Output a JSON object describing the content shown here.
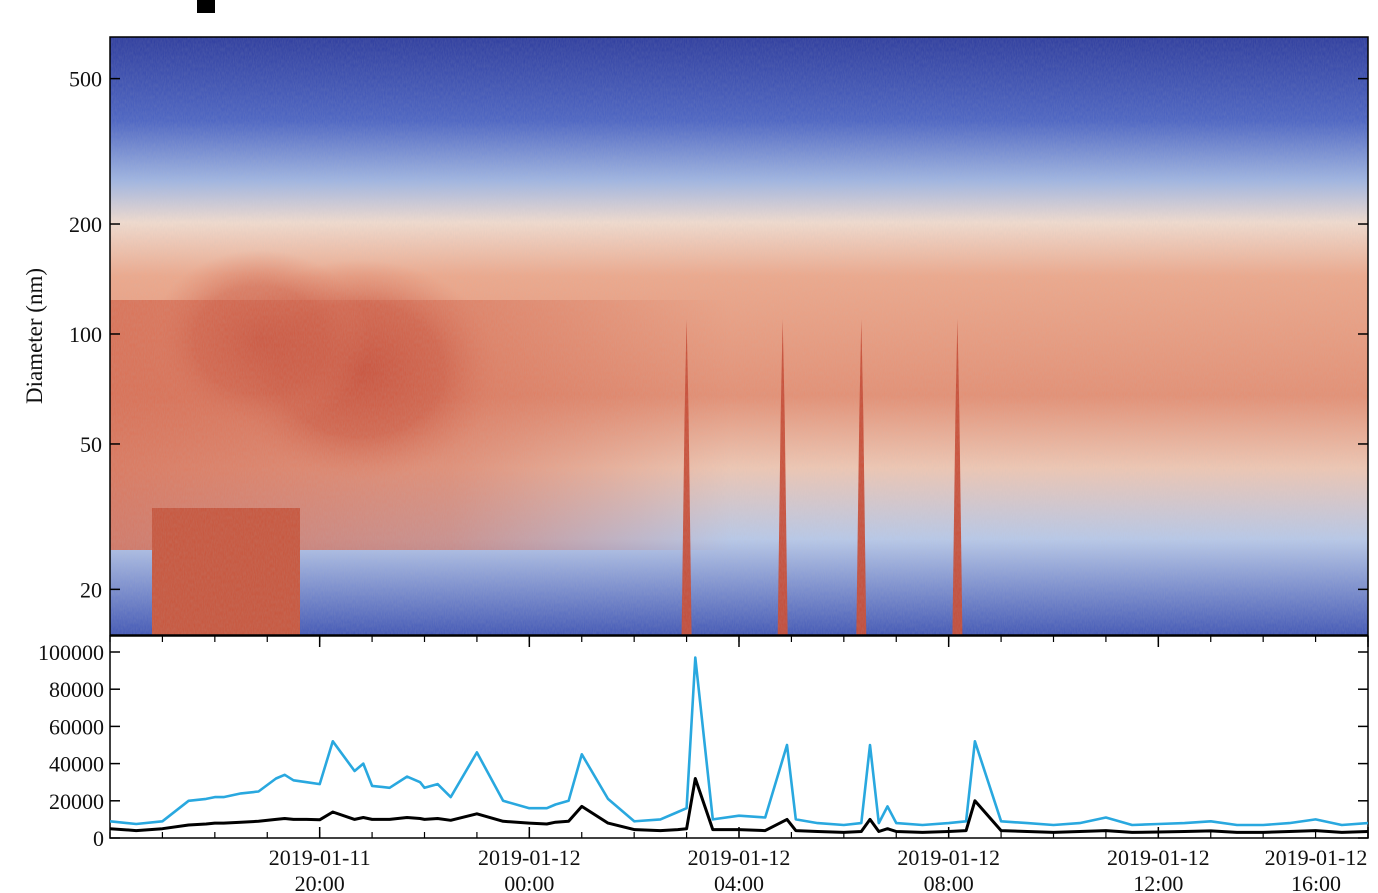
{
  "chart_data": [
    {
      "type": "heatmap",
      "title": "",
      "ylabel": "Diameter (nm)",
      "xlabel": "",
      "yscale": "log",
      "ylim": [
        15,
        650
      ],
      "yticks": [
        20,
        50,
        100,
        200,
        500
      ],
      "ytick_labels": [
        "20",
        "50",
        "100",
        "200",
        "500"
      ],
      "colormap": "coolwarm (blue low → red high)",
      "description_of_values": "Aerosol size distribution; high concentrations (red) at 20–200 nm before ~02:00 and in short burst events; low (blue) above ~250 nm and below ~50 nm after 02:00",
      "burst_events": [
        "2019-01-12 03:00",
        "2019-01-12 04:50",
        "2019-01-12 06:20",
        "2019-01-12 08:10"
      ]
    },
    {
      "type": "line",
      "title": "",
      "xlabel": "",
      "ylabel": "",
      "ylim": [
        0,
        100000
      ],
      "yticks": [
        0,
        20000,
        40000,
        60000,
        80000,
        100000
      ],
      "ytick_labels": [
        "0",
        "20000",
        "40000",
        "60000",
        "80000",
        "100000"
      ],
      "xlim": [
        "2019-01-11 16:00",
        "2019-01-12 16:00"
      ],
      "xticks": [
        {
          "line1": "2019-01-11",
          "line2": "20:00"
        },
        {
          "line1": "2019-01-12",
          "line2": "00:00"
        },
        {
          "line1": "2019-01-12",
          "line2": "04:00"
        },
        {
          "line1": "2019-01-12",
          "line2": "08:00"
        },
        {
          "line1": "2019-01-12",
          "line2": "12:00"
        },
        {
          "line1": "2019-01-12",
          "line2": "16:00"
        }
      ],
      "x": [
        "2019-01-11 16:00",
        "2019-01-11 16:30",
        "2019-01-11 17:00",
        "2019-01-11 17:30",
        "2019-01-11 17:50",
        "2019-01-11 18:00",
        "2019-01-11 18:10",
        "2019-01-11 18:30",
        "2019-01-11 18:50",
        "2019-01-11 19:10",
        "2019-01-11 19:20",
        "2019-01-11 19:30",
        "2019-01-11 19:45",
        "2019-01-11 20:00",
        "2019-01-11 20:15",
        "2019-01-11 20:40",
        "2019-01-11 20:50",
        "2019-01-11 21:00",
        "2019-01-11 21:20",
        "2019-01-11 21:40",
        "2019-01-11 21:55",
        "2019-01-11 22:00",
        "2019-01-11 22:15",
        "2019-01-11 22:30",
        "2019-01-11 23:00",
        "2019-01-11 23:30",
        "2019-01-12 00:00",
        "2019-01-12 00:20",
        "2019-01-12 00:30",
        "2019-01-12 00:45",
        "2019-01-12 01:00",
        "2019-01-12 01:30",
        "2019-01-12 02:00",
        "2019-01-12 02:30",
        "2019-01-12 02:50",
        "2019-01-12 03:00",
        "2019-01-12 03:10",
        "2019-01-12 03:30",
        "2019-01-12 04:00",
        "2019-01-12 04:30",
        "2019-01-12 04:55",
        "2019-01-12 05:05",
        "2019-01-12 05:30",
        "2019-01-12 06:00",
        "2019-01-12 06:20",
        "2019-01-12 06:30",
        "2019-01-12 06:40",
        "2019-01-12 06:50",
        "2019-01-12 07:00",
        "2019-01-12 07:30",
        "2019-01-12 08:00",
        "2019-01-12 08:20",
        "2019-01-12 08:30",
        "2019-01-12 09:00",
        "2019-01-12 09:30",
        "2019-01-12 10:00",
        "2019-01-12 10:30",
        "2019-01-12 11:00",
        "2019-01-12 11:30",
        "2019-01-12 12:00",
        "2019-01-12 12:30",
        "2019-01-12 13:00",
        "2019-01-12 13:30",
        "2019-01-12 14:00",
        "2019-01-12 14:30",
        "2019-01-12 15:00",
        "2019-01-12 15:30",
        "2019-01-12 16:00"
      ],
      "series": [
        {
          "color": "#29a8df",
          "values": [
            9000,
            7500,
            9000,
            20000,
            21000,
            22000,
            22000,
            24000,
            25000,
            32000,
            34000,
            31000,
            30000,
            29000,
            52000,
            36000,
            40000,
            28000,
            27000,
            33000,
            30000,
            27000,
            29000,
            22000,
            46000,
            20000,
            16000,
            16000,
            18000,
            20000,
            45000,
            21000,
            9000,
            10000,
            14000,
            16000,
            97000,
            10000,
            12000,
            11000,
            50000,
            10000,
            8000,
            7000,
            8000,
            50000,
            8000,
            17000,
            8000,
            7000,
            8000,
            9000,
            52000,
            9000,
            8000,
            7000,
            8000,
            11000,
            7000,
            7500,
            8000,
            9000,
            7000,
            7000,
            8000,
            10000,
            7000,
            8000
          ]
        },
        {
          "color": "#000000",
          "values": [
            5000,
            4000,
            5000,
            7000,
            7500,
            8000,
            8000,
            8500,
            9000,
            10000,
            10500,
            10000,
            10000,
            9800,
            14000,
            10000,
            11000,
            10000,
            10000,
            11000,
            10500,
            10000,
            10500,
            9500,
            13000,
            9000,
            8000,
            7500,
            8500,
            9000,
            17000,
            8000,
            4500,
            4000,
            4500,
            5000,
            32000,
            4500,
            4500,
            4000,
            10000,
            4000,
            3500,
            3000,
            3500,
            10000,
            3500,
            5000,
            3500,
            3000,
            3500,
            4000,
            20000,
            4000,
            3500,
            3000,
            3500,
            4000,
            3000,
            3200,
            3500,
            3800,
            3000,
            3000,
            3500,
            4000,
            3000,
            3500
          ]
        }
      ]
    }
  ]
}
